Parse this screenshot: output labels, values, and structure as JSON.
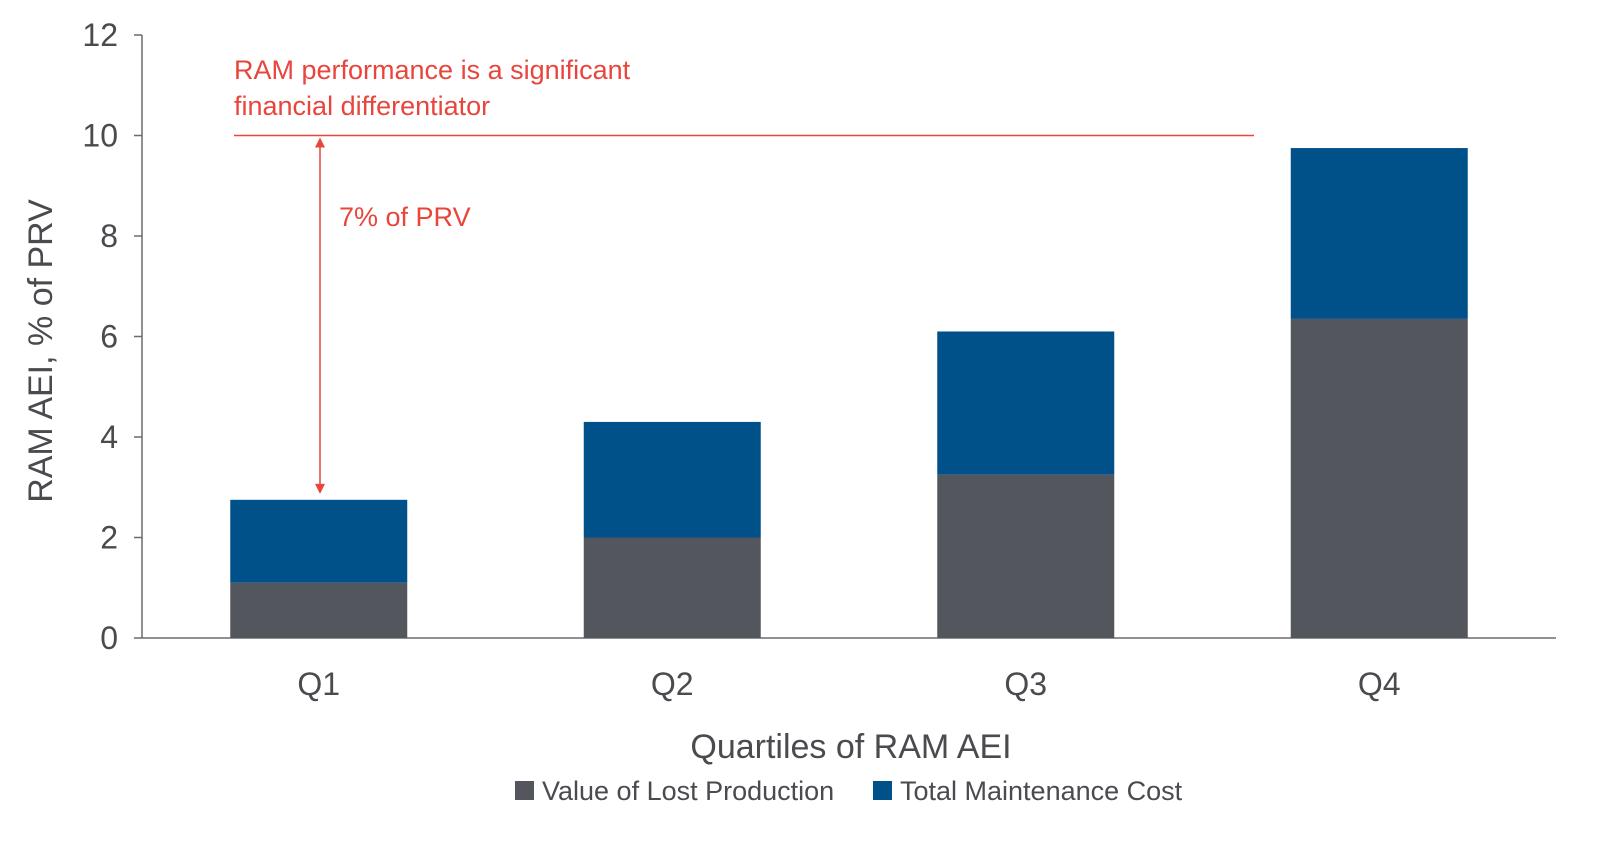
{
  "chart_data": {
    "type": "bar",
    "stacked": true,
    "categories": [
      "Q1",
      "Q2",
      "Q3",
      "Q4"
    ],
    "series": [
      {
        "name": "Value of Lost Production",
        "values": [
          1.1,
          2.0,
          3.25,
          6.35
        ],
        "color": "#53565c"
      },
      {
        "name": "Total Maintenance Cost",
        "values": [
          1.65,
          2.3,
          2.85,
          3.4
        ],
        "color": "#00508a"
      }
    ],
    "xlabel": "Quartiles of RAM AEI",
    "ylabel": "RAM AEI, % of PRV",
    "ylim": [
      0,
      12
    ],
    "yticks": [
      "0",
      "2",
      "4",
      "6",
      "8",
      "10",
      "12"
    ],
    "grid": false,
    "legend_position": "bottom",
    "annotations": {
      "headline_line1": "RAM performance is a significant",
      "headline_line2": "financial differentiator",
      "gap_label": "7% of PRV",
      "reference_value": 10,
      "arrow_from_value": 10,
      "arrow_to_value": 2.75,
      "color": "#e8453c"
    }
  }
}
